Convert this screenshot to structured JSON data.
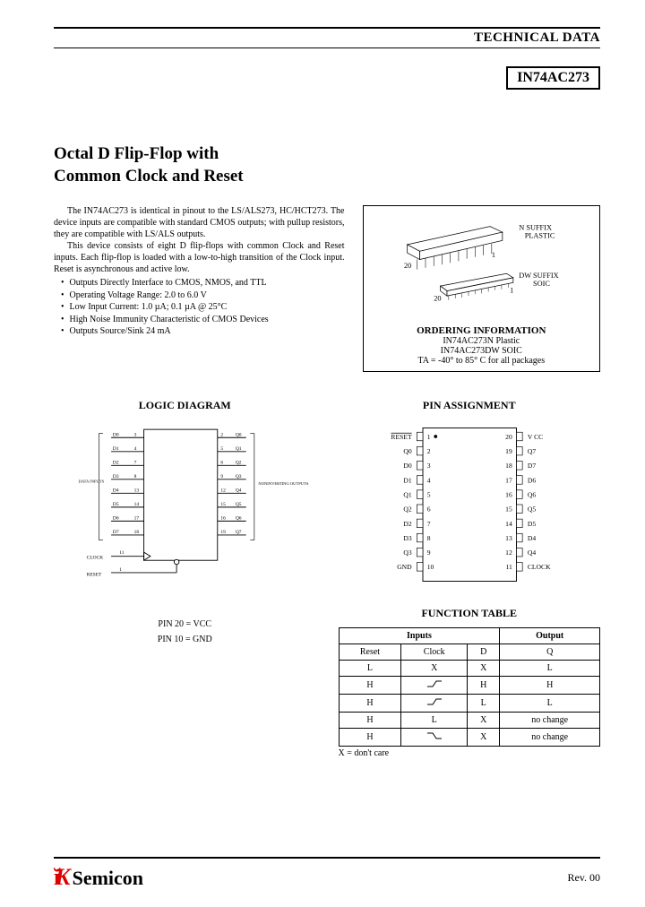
{
  "header": {
    "tech_data": "TECHNICAL DATA"
  },
  "part_number": "IN74AC273",
  "title_line1": "Octal D Flip-Flop with",
  "title_line2": "Common Clock and Reset",
  "paragraphs": {
    "p1": "The IN74AC273 is identical in pinout to the LS/ALS273, HC/HCT273. The device inputs are compatible with standard CMOS outputs; with pullup resistors, they are compatible with LS/ALS outputs.",
    "p2": "This device consists of eight D flip-flops with common Clock and Reset inputs. Each flip-flop is loaded with a low-to-high transition of the Clock input. Reset is asynchronous and active low."
  },
  "bullets": [
    "Outputs Directly Interface to CMOS, NMOS, and TTL",
    "Operating Voltage Range: 2.0 to 6.0 V",
    "Low Input Current: 1.0 µA; 0.1 µA @ 25°C",
    "High Noise Immunity Characteristic of CMOS Devices",
    "Outputs Source/Sink 24 mA"
  ],
  "packages": {
    "n_suffix": "N SUFFIX",
    "plastic": "PLASTIC",
    "dw_suffix": "DW SUFFIX",
    "soic": "SOIC",
    "pin20": "20",
    "pin1": "1",
    "order_title": "ORDERING INFORMATION",
    "order1": "IN74AC273N    Plastic",
    "order2": "IN74AC273DW  SOIC",
    "temp": "TA = -40° to 85° C for all packages"
  },
  "logic": {
    "title": "LOGIC DIAGRAM",
    "data_inputs": "DATA INPUTS",
    "outputs_label": "NONINVERTING OUTPUTS",
    "clock": "CLOCK",
    "reset": "RESET",
    "pin_vcc": "PIN 20 = VCC",
    "pin_gnd": "PIN 10 = GND",
    "d_pins": [
      "D0",
      "D1",
      "D2",
      "D3",
      "D4",
      "D5",
      "D6",
      "D7"
    ],
    "d_nums": [
      "3",
      "4",
      "7",
      "8",
      "13",
      "14",
      "17",
      "18"
    ],
    "q_pins": [
      "Q0",
      "Q1",
      "Q2",
      "Q3",
      "Q4",
      "Q5",
      "Q6",
      "Q7"
    ],
    "q_nums": [
      "2",
      "5",
      "6",
      "9",
      "12",
      "15",
      "16",
      "19"
    ],
    "clock_num": "11",
    "reset_num": "1"
  },
  "pin_assignment": {
    "title": "PIN ASSIGNMENT",
    "left": [
      {
        "n": "1",
        "l": "RESET",
        "ov": true
      },
      {
        "n": "2",
        "l": "Q0"
      },
      {
        "n": "3",
        "l": "D0"
      },
      {
        "n": "4",
        "l": "D1"
      },
      {
        "n": "5",
        "l": "Q1"
      },
      {
        "n": "6",
        "l": "Q2"
      },
      {
        "n": "7",
        "l": "D2"
      },
      {
        "n": "8",
        "l": "D3"
      },
      {
        "n": "9",
        "l": "Q3"
      },
      {
        "n": "10",
        "l": "GND"
      }
    ],
    "right": [
      {
        "n": "20",
        "l": "V CC"
      },
      {
        "n": "19",
        "l": "Q7"
      },
      {
        "n": "18",
        "l": "D7"
      },
      {
        "n": "17",
        "l": "D6"
      },
      {
        "n": "16",
        "l": "Q6"
      },
      {
        "n": "15",
        "l": "Q5"
      },
      {
        "n": "14",
        "l": "D5"
      },
      {
        "n": "13",
        "l": "D4"
      },
      {
        "n": "12",
        "l": "Q4"
      },
      {
        "n": "11",
        "l": "CLOCK"
      }
    ]
  },
  "function_table": {
    "title": "FUNCTION TABLE",
    "head_inputs": "Inputs",
    "head_output": "Output",
    "cols": [
      "Reset",
      "Clock",
      "D",
      "Q"
    ],
    "rows": [
      [
        "L",
        "X",
        "X",
        "L"
      ],
      [
        "H",
        "↗",
        "H",
        "H"
      ],
      [
        "H",
        "↗",
        "L",
        "L"
      ],
      [
        "H",
        "L",
        "X",
        "no change"
      ],
      [
        "H",
        "↘",
        "X",
        "no change"
      ]
    ],
    "note": "X = don't care"
  },
  "footer": {
    "logo_text": "Semicon",
    "rev": "Rev. 00"
  }
}
